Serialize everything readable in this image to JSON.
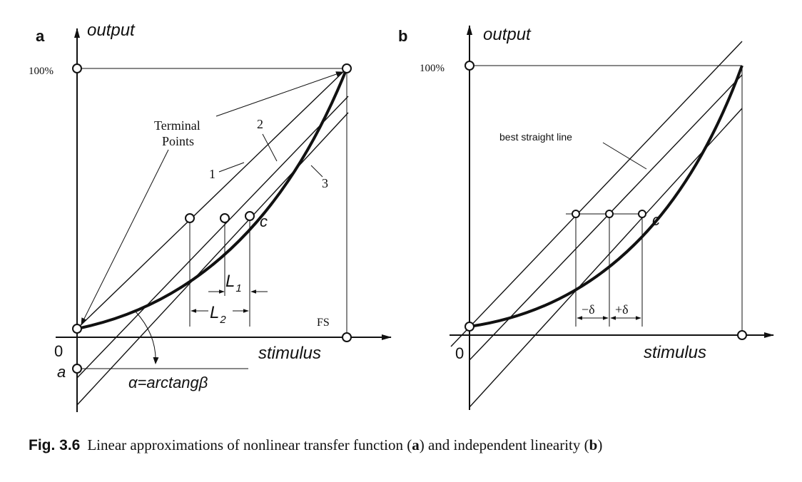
{
  "panel_a": {
    "letter": "a",
    "y_axis_label": "output",
    "x_axis_label": "stimulus",
    "y_top_tick": "100%",
    "origin": "0",
    "y_intercept_label": "a",
    "fs_label": "FS",
    "terminal_points_line1": "Terminal",
    "terminal_points_line2": "Points",
    "line_1_label": "1",
    "line_2_label": "2",
    "line_3_label": "3",
    "point_c_label": "c",
    "l1_label": "L",
    "l1_sub": "1",
    "l2_label": "L",
    "l2_sub": "2",
    "angle_label_prefix": "α=arctang",
    "angle_label_beta": "β"
  },
  "panel_b": {
    "letter": "b",
    "y_axis_label": "output",
    "x_axis_label": "stimulus",
    "y_top_tick": "100%",
    "origin": "0",
    "best_line_label": "best straight line",
    "point_c_label": "c",
    "minus_delta_label": "−δ",
    "plus_delta_label": "+δ"
  },
  "caption": {
    "fig_label": "Fig. 3.6",
    "text_1": "Linear approximations of nonlinear transfer function (",
    "bold_a": "a",
    "text_2": ") and independent linearity (",
    "bold_b": "b",
    "text_3": ")"
  }
}
